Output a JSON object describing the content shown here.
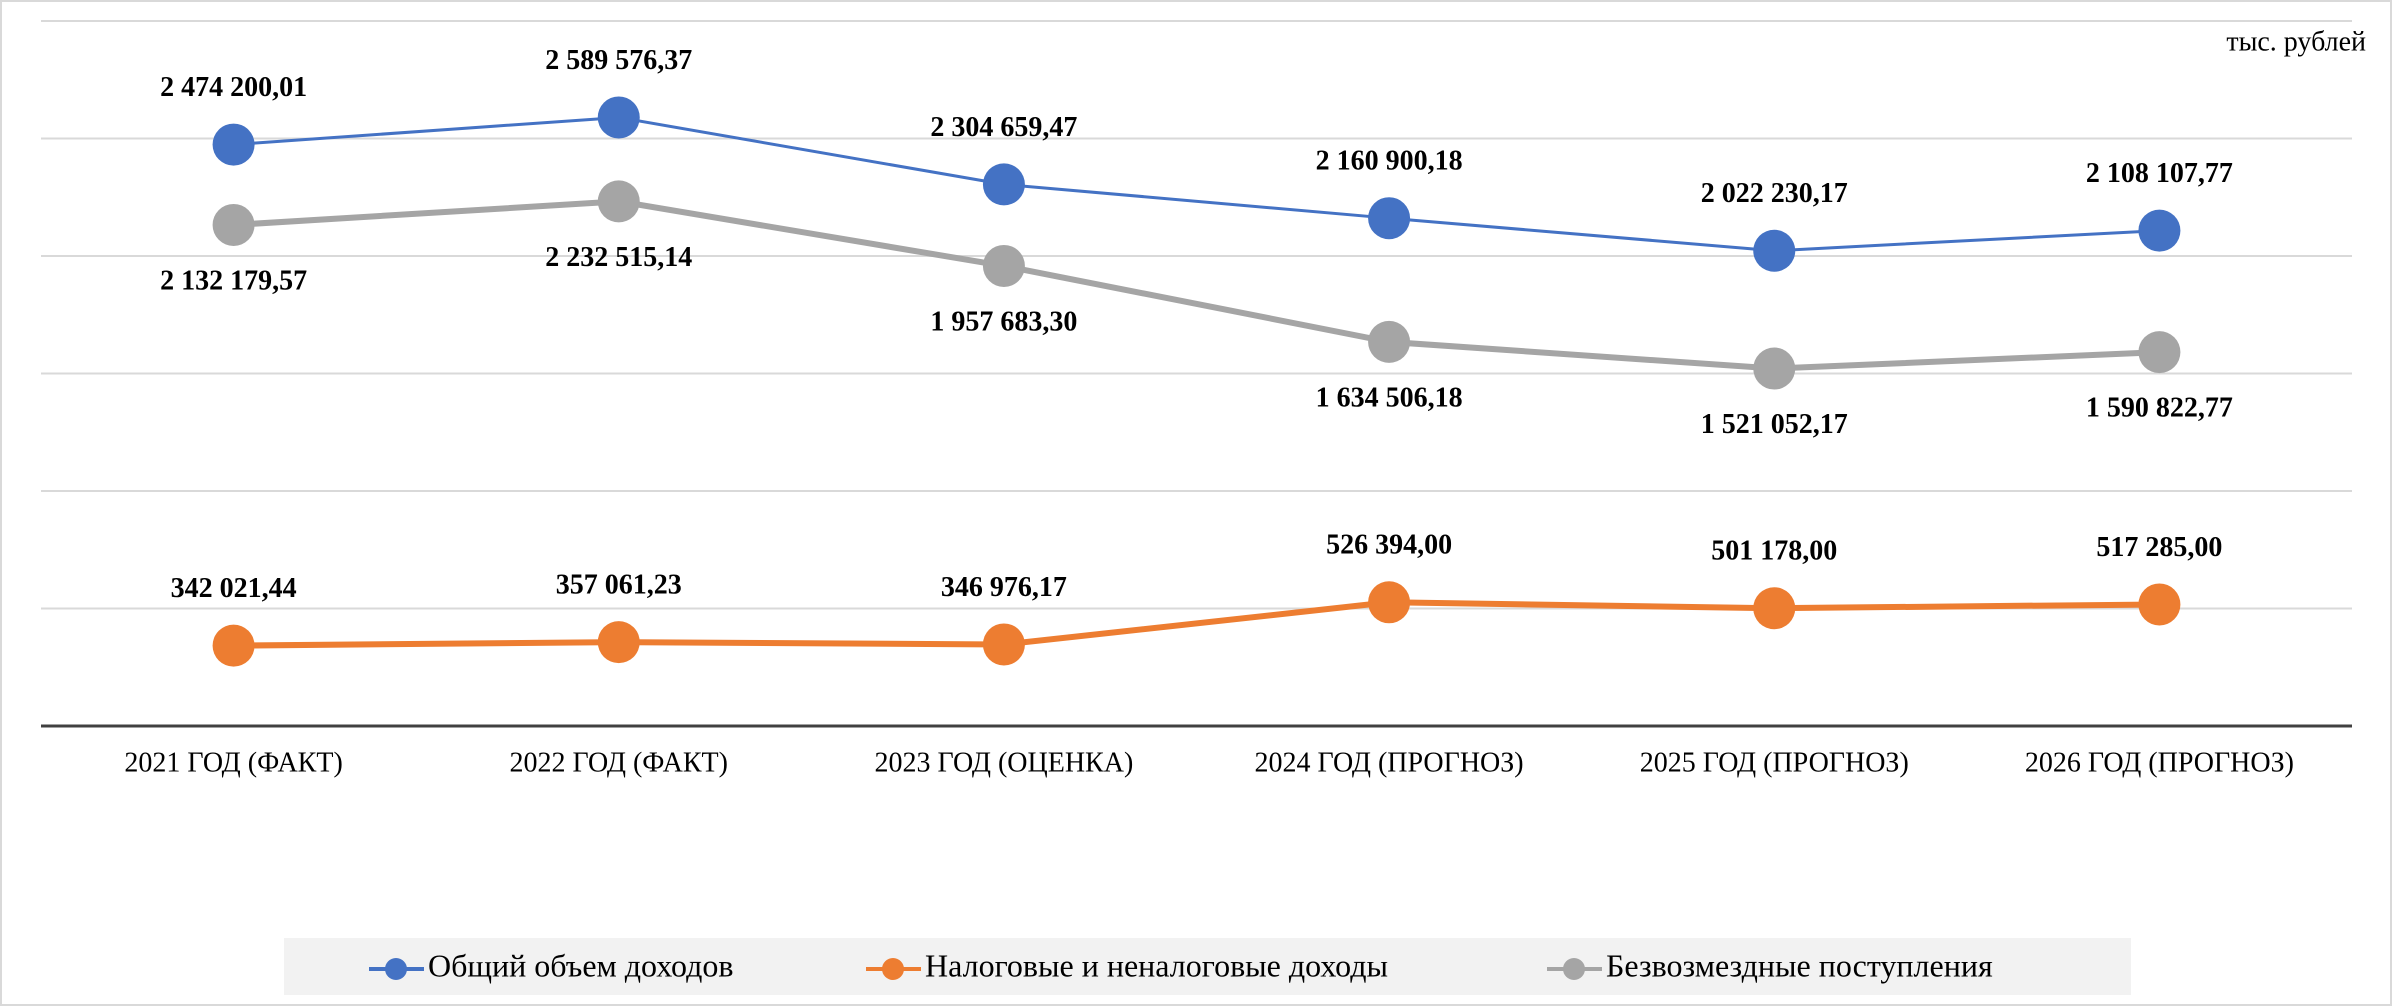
{
  "chart_data": {
    "type": "line",
    "annotation": "тыс. рублей",
    "categories": [
      "2021 ГОД (ФАКТ)",
      "2022 ГОД (ФАКТ)",
      "2023 ГОД (ОЦЕНКА)",
      "2024 ГОД (ПРОГНОЗ)",
      "2025 ГОД (ПРОГНОЗ)",
      "2026 ГОД (ПРОГНОЗ)"
    ],
    "series": [
      {
        "name": "Общий объем доходов",
        "color": "#4472c4",
        "label_side": "above",
        "values": [
          2474200.01,
          2589576.37,
          2304659.47,
          2160900.18,
          2022230.17,
          2108107.77
        ],
        "value_labels": [
          "2 474 200,01",
          "2 589 576,37",
          "2 304 659,47",
          "2 160 900,18",
          "2 022 230,17",
          "2 108 107,77"
        ]
      },
      {
        "name": "Налоговые и неналоговые доходы",
        "color": "#ed7d31",
        "label_side": "above",
        "values": [
          342021.44,
          357061.23,
          346976.17,
          526394.0,
          501178.0,
          517285.0
        ],
        "value_labels": [
          "342 021,44",
          "357 061,23",
          "346 976,17",
          "526 394,00",
          "501 178,00",
          "517 285,00"
        ]
      },
      {
        "name": "Безвозмездные поступления",
        "color": "#a5a5a5",
        "label_side": "below",
        "values": [
          2132179.57,
          2232515.14,
          1957683.3,
          1634506.18,
          1521052.17,
          1590822.77
        ],
        "value_labels": [
          "2 132 179,57",
          "2 232 515,14",
          "1 957 683,30",
          "1 634 506,18",
          "1 521 052,17",
          "1 590 822,77"
        ]
      }
    ],
    "ylim": [
      0,
      3000000
    ],
    "yticks": [
      0,
      500000,
      1000000,
      1500000,
      2000000,
      2500000,
      3000000
    ],
    "grid": true,
    "legend": "bottom"
  }
}
